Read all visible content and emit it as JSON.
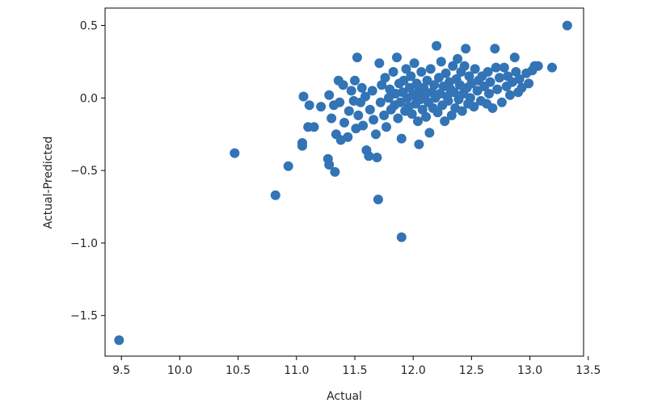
{
  "chart_data": {
    "type": "scatter",
    "title": "",
    "xlabel": "Actual",
    "ylabel": "Actual-Predicted",
    "xlim": [
      9.36,
      13.46
    ],
    "ylim": [
      -1.78,
      0.62
    ],
    "xticks": [
      9.5,
      10.0,
      10.5,
      11.0,
      11.5,
      12.0,
      12.5,
      13.0,
      13.5
    ],
    "xtick_labels": [
      "9.5",
      "10.0",
      "10.5",
      "11.0",
      "11.5",
      "12.0",
      "12.5",
      "13.0",
      "13.5"
    ],
    "yticks": [
      -1.5,
      -1.0,
      -0.5,
      0.0,
      0.5
    ],
    "ytick_labels": [
      "−1.5",
      "−1.0",
      "−0.5",
      "0.0",
      "0.5"
    ],
    "marker_color": "#3274b5",
    "grid": false,
    "points": [
      [
        9.48,
        -1.67
      ],
      [
        10.47,
        -0.38
      ],
      [
        10.82,
        -0.67
      ],
      [
        10.93,
        -0.47
      ],
      [
        11.05,
        -0.31
      ],
      [
        11.05,
        -0.33
      ],
      [
        11.06,
        0.01
      ],
      [
        11.1,
        -0.2
      ],
      [
        11.11,
        -0.05
      ],
      [
        11.15,
        -0.2
      ],
      [
        11.21,
        -0.06
      ],
      [
        11.27,
        -0.42
      ],
      [
        11.28,
        -0.46
      ],
      [
        11.33,
        -0.51
      ],
      [
        11.28,
        0.02
      ],
      [
        11.3,
        -0.14
      ],
      [
        11.32,
        -0.05
      ],
      [
        11.34,
        -0.25
      ],
      [
        11.36,
        0.12
      ],
      [
        11.37,
        -0.03
      ],
      [
        11.38,
        -0.29
      ],
      [
        11.4,
        0.09
      ],
      [
        11.41,
        -0.17
      ],
      [
        11.44,
        -0.27
      ],
      [
        11.45,
        -0.09
      ],
      [
        11.47,
        0.05
      ],
      [
        11.49,
        -0.02
      ],
      [
        11.5,
        0.12
      ],
      [
        11.51,
        -0.21
      ],
      [
        11.52,
        0.28
      ],
      [
        11.53,
        -0.12
      ],
      [
        11.55,
        -0.03
      ],
      [
        11.56,
        0.07
      ],
      [
        11.57,
        -0.19
      ],
      [
        11.59,
        0.01
      ],
      [
        11.6,
        -0.36
      ],
      [
        11.62,
        -0.4
      ],
      [
        11.63,
        -0.08
      ],
      [
        11.65,
        0.05
      ],
      [
        11.66,
        -0.15
      ],
      [
        11.68,
        -0.25
      ],
      [
        11.69,
        -0.41
      ],
      [
        11.7,
        -0.7
      ],
      [
        11.71,
        0.24
      ],
      [
        11.72,
        -0.03
      ],
      [
        11.73,
        0.09
      ],
      [
        11.75,
        -0.12
      ],
      [
        11.76,
        0.14
      ],
      [
        11.77,
        -0.2
      ],
      [
        11.79,
        0.0
      ],
      [
        11.8,
        0.06
      ],
      [
        11.81,
        -0.08
      ],
      [
        11.83,
        0.18
      ],
      [
        11.84,
        -0.05
      ],
      [
        11.85,
        0.03
      ],
      [
        11.86,
        0.28
      ],
      [
        11.87,
        -0.14
      ],
      [
        11.88,
        0.1
      ],
      [
        11.89,
        -0.03
      ],
      [
        11.9,
        -0.96
      ],
      [
        11.9,
        -0.28
      ],
      [
        11.91,
        0.04
      ],
      [
        11.92,
        0.12
      ],
      [
        11.93,
        -0.09
      ],
      [
        11.94,
        0.2
      ],
      [
        11.95,
        0.0
      ],
      [
        11.96,
        -0.06
      ],
      [
        11.97,
        0.07
      ],
      [
        11.98,
        0.15
      ],
      [
        11.99,
        -0.11
      ],
      [
        12.0,
        0.02
      ],
      [
        12.01,
        0.24
      ],
      [
        12.02,
        -0.04
      ],
      [
        12.03,
        0.1
      ],
      [
        12.04,
        -0.16
      ],
      [
        12.05,
        0.05
      ],
      [
        12.05,
        -0.32
      ],
      [
        12.06,
        -0.01
      ],
      [
        12.07,
        0.18
      ],
      [
        12.08,
        -0.08
      ],
      [
        12.09,
        0.07
      ],
      [
        12.1,
        0.02
      ],
      [
        12.11,
        -0.13
      ],
      [
        12.12,
        0.12
      ],
      [
        12.13,
        -0.03
      ],
      [
        12.14,
        -0.24
      ],
      [
        12.15,
        0.2
      ],
      [
        12.16,
        0.04
      ],
      [
        12.17,
        -0.07
      ],
      [
        12.18,
        0.09
      ],
      [
        12.19,
        0.0
      ],
      [
        12.2,
        0.36
      ],
      [
        12.21,
        -0.1
      ],
      [
        12.22,
        0.14
      ],
      [
        12.23,
        0.03
      ],
      [
        12.24,
        0.25
      ],
      [
        12.25,
        -0.05
      ],
      [
        12.26,
        0.08
      ],
      [
        12.27,
        -0.16
      ],
      [
        12.28,
        0.17
      ],
      [
        12.29,
        0.01
      ],
      [
        12.3,
        -0.02
      ],
      [
        12.31,
        0.11
      ],
      [
        12.32,
        0.06
      ],
      [
        12.33,
        -0.12
      ],
      [
        12.34,
        0.22
      ],
      [
        12.35,
        0.04
      ],
      [
        12.36,
        -0.07
      ],
      [
        12.37,
        0.13
      ],
      [
        12.38,
        0.27
      ],
      [
        12.39,
        -0.01
      ],
      [
        12.4,
        0.09
      ],
      [
        12.41,
        0.18
      ],
      [
        12.42,
        -0.09
      ],
      [
        12.43,
        0.03
      ],
      [
        12.44,
        0.22
      ],
      [
        12.45,
        0.34
      ],
      [
        12.46,
        0.07
      ],
      [
        12.47,
        -0.04
      ],
      [
        12.48,
        0.15
      ],
      [
        12.49,
        0.0
      ],
      [
        12.5,
        0.1
      ],
      [
        12.52,
        -0.06
      ],
      [
        12.53,
        0.2
      ],
      [
        12.55,
        0.05
      ],
      [
        12.56,
        0.12
      ],
      [
        12.58,
        -0.02
      ],
      [
        12.59,
        0.15
      ],
      [
        12.61,
        0.08
      ],
      [
        12.63,
        -0.04
      ],
      [
        12.64,
        0.18
      ],
      [
        12.65,
        0.03
      ],
      [
        12.66,
        0.11
      ],
      [
        12.68,
        -0.07
      ],
      [
        12.7,
        0.34
      ],
      [
        12.71,
        0.21
      ],
      [
        12.72,
        0.06
      ],
      [
        12.74,
        0.14
      ],
      [
        12.76,
        -0.03
      ],
      [
        12.78,
        0.21
      ],
      [
        12.8,
        0.08
      ],
      [
        12.81,
        0.15
      ],
      [
        12.83,
        0.02
      ],
      [
        12.85,
        0.11
      ],
      [
        12.87,
        0.28
      ],
      [
        12.88,
        0.18
      ],
      [
        12.9,
        0.04
      ],
      [
        12.91,
        0.13
      ],
      [
        12.93,
        0.07
      ],
      [
        12.97,
        0.17
      ],
      [
        12.99,
        0.1
      ],
      [
        13.02,
        0.19
      ],
      [
        13.04,
        0.22
      ],
      [
        13.07,
        0.22
      ],
      [
        13.19,
        0.21
      ],
      [
        13.32,
        0.5
      ]
    ]
  }
}
